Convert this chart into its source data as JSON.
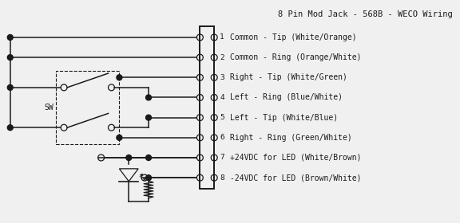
{
  "title": "8 Pin Mod Jack - 568B - WECO Wiring",
  "bg_color": "#f0f0f0",
  "line_color": "#1a1a1a",
  "font_family": "monospace",
  "title_fontsize": 7.5,
  "label_fontsize": 7.0,
  "pin_num_fontsize": 6.8,
  "sw_fontsize": 7.0,
  "pin_descriptions": [
    "Common - Tip (White/Orange)",
    "Common - Ring (Orange/White)",
    "Right - Tip (White/Green)",
    "Left - Ring (Blue/White)",
    "Left - Tip (White/Blue)",
    "Right - Ring (Green/White)",
    "+24VDC for LED (White/Brown)",
    "-24VDC for LED (Brown/White)"
  ]
}
